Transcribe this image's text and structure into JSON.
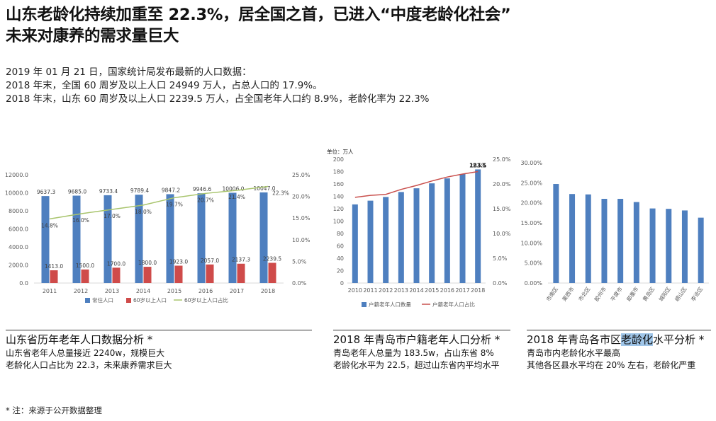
{
  "page": {
    "title_line1": "山东老龄化持续加重至 22.3%，居全国之首，已进入“中度老龄化社会”",
    "title_line2": "未来对康养的需求量巨大",
    "intro": [
      "2019 年 01 月 21 日，国家统计局发布最新的人口数据：",
      "2018 年末，全国 60 周岁及以上人口 24949 万人，占总人口的 17.9%。",
      "2018 年末，山东 60 周岁及以上人口 2239.5 万人，占全国老年人口约 8.9%，老龄化率为 22.3%"
    ],
    "captions": [
      {
        "title": "山东省历年老年人口数据分析 *",
        "lines": [
          "山东省老年人总量接近 2240w，规模巨大",
          "老龄化人口占比为 22.3，未来康养需求巨大"
        ]
      },
      {
        "title": "2018 年青岛市户籍老年人口分析 *",
        "lines": [
          "青岛老年人总量为 183.5w，占山东省 8%",
          "老龄化水平为 22.5，超过山东省内平均水平"
        ]
      },
      {
        "title_pre": "2018 年青岛各市区",
        "title_hl": "老龄化",
        "title_post": "水平分析 *",
        "lines": [
          "青岛市内老龄化水平最高",
          "其他各区县水平均在 20% 左右，老龄化严重"
        ]
      }
    ],
    "footnote": "* 注：来源于公开数据整理"
  },
  "colors": {
    "bar_blue": "#4e7fbf",
    "bar_red": "#cf4b4a",
    "line_green": "#a8c46c",
    "line_red": "#c9504d",
    "axis": "#d9d9d9",
    "tick_text": "#595959"
  },
  "chart_data": [
    {
      "type": "bar",
      "categories": [
        "2011",
        "2012",
        "2013",
        "2014",
        "2015",
        "2016",
        "2017",
        "2018"
      ],
      "series": [
        {
          "name": "常住人口",
          "type": "bar",
          "values": [
            9637.3,
            9685.0,
            9733.4,
            9789.4,
            9847.2,
            9946.6,
            10006.0,
            10047.0
          ],
          "labels": [
            "9637.3",
            "9685.0",
            "9733.4",
            "9789.4",
            "9847.2",
            "9946.6",
            "10006.0",
            "10047.0"
          ]
        },
        {
          "name": "60岁以上人口",
          "type": "bar",
          "values": [
            1413.0,
            1500.0,
            1700.0,
            1800.0,
            1923.0,
            2057.0,
            2137.3,
            2239.5
          ],
          "labels": [
            "1413.0",
            "1500.0",
            "1700.0",
            "1800.0",
            "1923.0",
            "2057.0",
            "2137.3",
            "2239.5"
          ]
        },
        {
          "name": "60岁以上人口占比",
          "type": "line",
          "axis": "right",
          "values": [
            14.8,
            16.0,
            17.0,
            18.0,
            19.7,
            20.7,
            21.4,
            22.3
          ],
          "labels": [
            "14.8%",
            "16.0%",
            "17.0%",
            "18.0%",
            "19.7%",
            "20.7%",
            "21.4%",
            "22.3%"
          ]
        }
      ],
      "ylim": [
        0,
        12000
      ],
      "yticks": [
        "0.0",
        "2000.0",
        "4000.0",
        "6000.0",
        "8000.0",
        "10000.0",
        "12000.0"
      ],
      "y2lim": [
        0,
        25
      ],
      "y2ticks": [
        "0.0%",
        "5.0%",
        "10.0%",
        "15.0%",
        "20.0%",
        "25.0%"
      ],
      "legend": "bottom",
      "grid": false
    },
    {
      "type": "bar",
      "unit_label": "单位：万人",
      "categories": [
        "2010",
        "2011",
        "2012",
        "2013",
        "2014",
        "2015",
        "2016",
        "2017",
        "2018"
      ],
      "series": [
        {
          "name": "户籍老年人口数量",
          "type": "bar",
          "values": [
            127,
            133,
            139,
            147,
            153,
            161,
            169,
            176,
            183.5
          ]
        },
        {
          "name": "户籍老年人口占比",
          "type": "line",
          "axis": "right",
          "values": [
            17.3,
            17.7,
            17.9,
            18.9,
            19.7,
            20.6,
            21.4,
            22.0,
            22.5
          ]
        }
      ],
      "annotations": [
        "183.5",
        "22.5%"
      ],
      "ylim": [
        0,
        200
      ],
      "yticks": [
        "0",
        "20",
        "40",
        "60",
        "80",
        "100",
        "120",
        "140",
        "160",
        "180",
        "200"
      ],
      "y2lim": [
        0,
        25
      ],
      "y2ticks": [
        "0.0%",
        "5.0%",
        "10.0%",
        "15.0%",
        "20.0%",
        "25.0%"
      ],
      "legend": "bottom",
      "grid": false
    },
    {
      "type": "bar",
      "categories": [
        "市南区",
        "莱西市",
        "市北区",
        "胶州市",
        "平度市",
        "即墨市",
        "黄岛区",
        "城阳区",
        "崂山区",
        "李沧区"
      ],
      "values": [
        24.7,
        22.2,
        22.1,
        21.0,
        21.0,
        20.2,
        18.6,
        18.5,
        18.1,
        16.3
      ],
      "ylim": [
        0,
        30
      ],
      "yticks": [
        "0.00%",
        "5.00%",
        "10.00%",
        "15.00%",
        "20.00%",
        "25.00%",
        "30.00%"
      ],
      "grid": false
    }
  ]
}
